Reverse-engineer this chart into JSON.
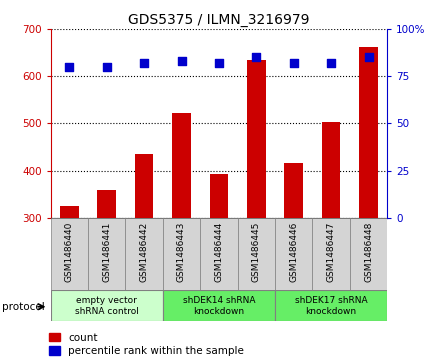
{
  "title": "GDS5375 / ILMN_3216979",
  "samples": [
    "GSM1486440",
    "GSM1486441",
    "GSM1486442",
    "GSM1486443",
    "GSM1486444",
    "GSM1486445",
    "GSM1486446",
    "GSM1486447",
    "GSM1486448"
  ],
  "counts": [
    325,
    358,
    435,
    522,
    393,
    635,
    417,
    503,
    662
  ],
  "percentiles": [
    80,
    80,
    82,
    83,
    82,
    85,
    82,
    82,
    85
  ],
  "ylim_left": [
    300,
    700
  ],
  "ylim_right": [
    0,
    100
  ],
  "yticks_left": [
    300,
    400,
    500,
    600,
    700
  ],
  "yticks_right": [
    0,
    25,
    50,
    75,
    100
  ],
  "bar_color": "#cc0000",
  "dot_color": "#0000cc",
  "groups": [
    {
      "label": "empty vector\nshRNA control",
      "start": 0,
      "end": 3,
      "color": "#ccffcc"
    },
    {
      "label": "shDEK14 shRNA\nknockdown",
      "start": 3,
      "end": 6,
      "color": "#66ee66"
    },
    {
      "label": "shDEK17 shRNA\nknockdown",
      "start": 6,
      "end": 9,
      "color": "#66ee66"
    }
  ],
  "protocol_label": "protocol",
  "legend_count": "count",
  "legend_percentile": "percentile rank within the sample",
  "bar_width": 0.5,
  "dot_size": 40,
  "bg_gray": "#d4d4d4",
  "fig_bg": "#ffffff"
}
